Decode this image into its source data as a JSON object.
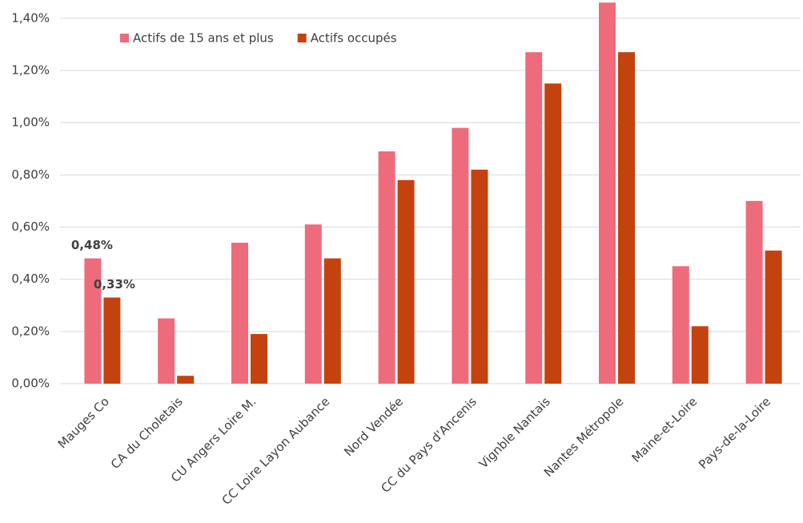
{
  "chart_data": {
    "type": "bar",
    "categories": [
      "Mauges Co",
      "CA du Choletais",
      "CU Angers Loire M.",
      "CC Loire Layon Aubance",
      "Nord Vendée",
      "CC du Pays d'Ancenis",
      "Vignble Nantais",
      "Nantes Métropole",
      "Maine-et-Loire",
      "Pays-de-la-Loire"
    ],
    "series": [
      {
        "name": "Actifs de 15 ans et plus",
        "color": "#ee6b7b",
        "values": [
          0.48,
          0.25,
          0.54,
          0.61,
          0.89,
          0.98,
          1.27,
          1.46,
          0.45,
          0.7
        ],
        "value_labels": [
          "0,48%",
          null,
          null,
          null,
          null,
          null,
          null,
          null,
          null,
          null
        ]
      },
      {
        "name": "Actifs occupés",
        "color": "#c4420e",
        "values": [
          0.33,
          0.03,
          0.19,
          0.48,
          0.78,
          0.82,
          1.15,
          1.27,
          0.22,
          0.51
        ],
        "value_labels": [
          "0,33%",
          null,
          null,
          null,
          null,
          null,
          null,
          null,
          null,
          null
        ]
      }
    ],
    "ylim": [
      0,
      1.47
    ],
    "yticks": [
      {
        "value": 0,
        "label": "0,00%"
      },
      {
        "value": 0.2,
        "label": "0,20%"
      },
      {
        "value": 0.4,
        "label": "0,40%"
      },
      {
        "value": 0.6,
        "label": "0,60%"
      },
      {
        "value": 0.8,
        "label": "0,80%"
      },
      {
        "value": 1.0,
        "label": "1,00%"
      },
      {
        "value": 1.2,
        "label": "1,20%"
      },
      {
        "value": 1.4,
        "label": "1,40%"
      }
    ],
    "grid": true,
    "legend": "top-left"
  }
}
